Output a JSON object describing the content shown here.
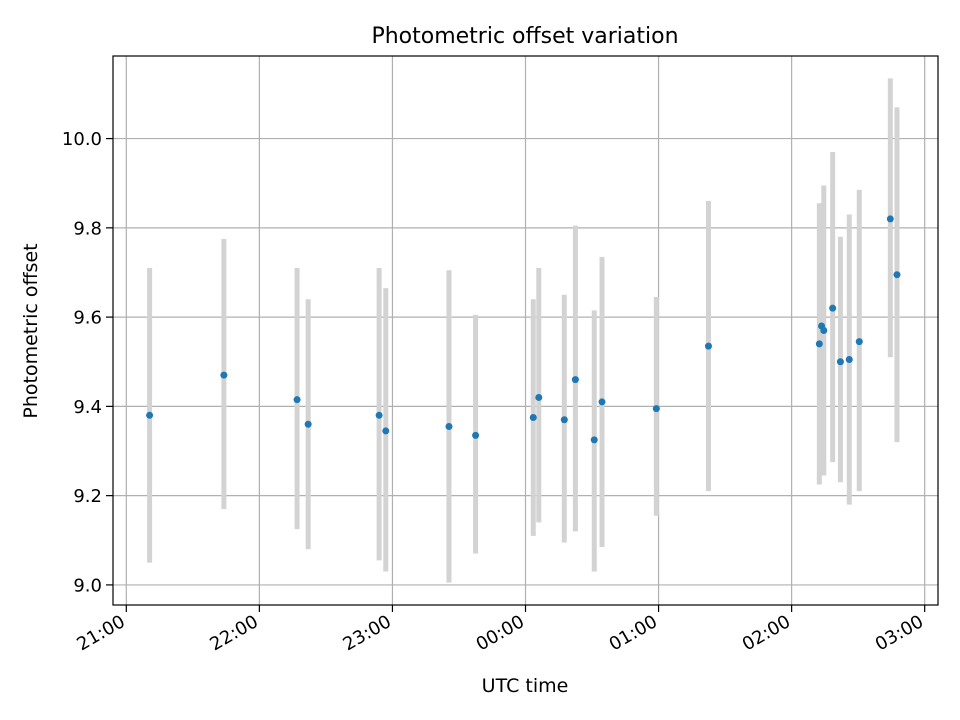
{
  "chart_data": {
    "type": "scatter",
    "title": "Photometric offset variation",
    "xlabel": "UTC time",
    "ylabel": "Photometric offset",
    "xlim": [
      "20:54",
      "03:06"
    ],
    "ylim": [
      8.955,
      10.185
    ],
    "grid": true,
    "x_ticks": [
      "21:00",
      "22:00",
      "23:00",
      "00:00",
      "01:00",
      "02:00",
      "03:00"
    ],
    "y_ticks": [
      "9.0",
      "9.2",
      "9.4",
      "9.6",
      "9.8",
      "10.0"
    ],
    "colors": {
      "point": "#1f77b4",
      "errorbar": "#d3d3d3",
      "grid": "#b0b0b0"
    },
    "points": [
      {
        "x": "21:10.5",
        "y": 9.38,
        "ylow": 9.05,
        "yhigh": 9.71
      },
      {
        "x": "21:44",
        "y": 9.47,
        "ylow": 9.17,
        "yhigh": 9.775
      },
      {
        "x": "22:17",
        "y": 9.415,
        "ylow": 9.125,
        "yhigh": 9.71
      },
      {
        "x": "22:22",
        "y": 9.36,
        "ylow": 9.08,
        "yhigh": 9.64
      },
      {
        "x": "22:54",
        "y": 9.38,
        "ylow": 9.055,
        "yhigh": 9.71
      },
      {
        "x": "22:57",
        "y": 9.345,
        "ylow": 9.03,
        "yhigh": 9.665
      },
      {
        "x": "23:25.5",
        "y": 9.355,
        "ylow": 9.005,
        "yhigh": 9.705
      },
      {
        "x": "23:37.5",
        "y": 9.335,
        "ylow": 9.07,
        "yhigh": 9.605
      },
      {
        "x": "00:03.5",
        "y": 9.375,
        "ylow": 9.11,
        "yhigh": 9.64
      },
      {
        "x": "00:06",
        "y": 9.42,
        "ylow": 9.14,
        "yhigh": 9.71
      },
      {
        "x": "00:17.5",
        "y": 9.37,
        "ylow": 9.095,
        "yhigh": 9.65
      },
      {
        "x": "00:22.5",
        "y": 9.46,
        "ylow": 9.12,
        "yhigh": 9.805
      },
      {
        "x": "00:31",
        "y": 9.325,
        "ylow": 9.03,
        "yhigh": 9.615
      },
      {
        "x": "00:34.5",
        "y": 9.41,
        "ylow": 9.085,
        "yhigh": 9.735
      },
      {
        "x": "00:59",
        "y": 9.395,
        "ylow": 9.155,
        "yhigh": 9.645
      },
      {
        "x": "01:22.5",
        "y": 9.535,
        "ylow": 9.21,
        "yhigh": 9.86
      },
      {
        "x": "02:12.5",
        "y": 9.54,
        "ylow": 9.225,
        "yhigh": 9.855
      },
      {
        "x": "02:13.5",
        "y": 9.58,
        "ylow": 9.325,
        "yhigh": 9.84
      },
      {
        "x": "02:14.5",
        "y": 9.57,
        "ylow": 9.245,
        "yhigh": 9.895
      },
      {
        "x": "02:18.5",
        "y": 9.62,
        "ylow": 9.275,
        "yhigh": 9.97
      },
      {
        "x": "02:22",
        "y": 9.5,
        "ylow": 9.23,
        "yhigh": 9.78
      },
      {
        "x": "02:26",
        "y": 9.505,
        "ylow": 9.18,
        "yhigh": 9.83
      },
      {
        "x": "02:30.5",
        "y": 9.545,
        "ylow": 9.21,
        "yhigh": 9.885
      },
      {
        "x": "02:44.5",
        "y": 9.82,
        "ylow": 9.51,
        "yhigh": 10.135
      },
      {
        "x": "02:47.5",
        "y": 9.695,
        "ylow": 9.32,
        "yhigh": 10.07
      }
    ]
  }
}
